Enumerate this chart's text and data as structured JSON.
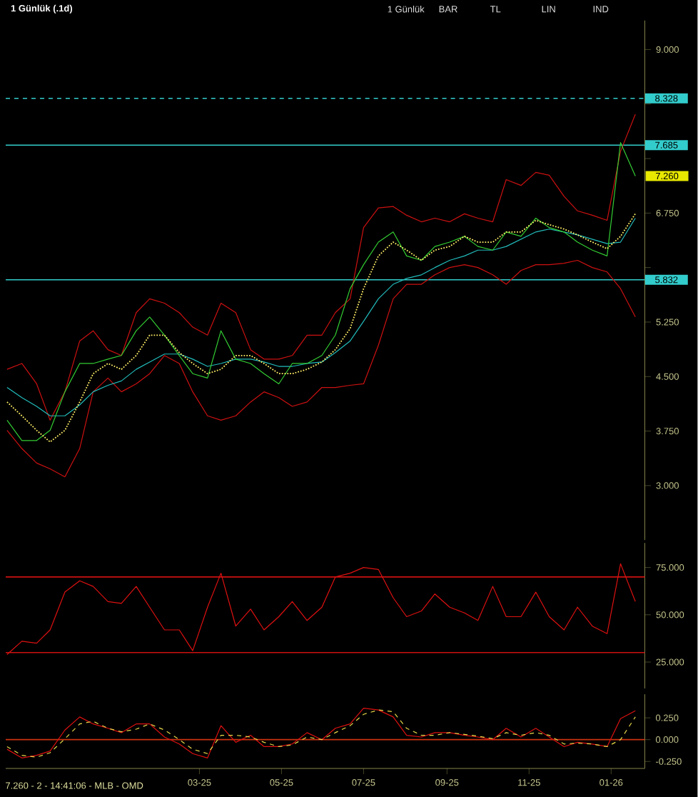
{
  "chart_data": [
    {
      "type": "line",
      "title": "1 Günlük (.1d)",
      "annotations": [
        "1 Günlük",
        "BAR",
        "TL",
        "LIN",
        "IND",
        {
          "text": "7.260",
          "x": "2026-01-19",
          "y": 7.26
        }
      ],
      "x": [
        "2024-10-09",
        "2024-10-20",
        "2024-10-31",
        "2024-11-10",
        "2024-11-21",
        "2024-12-02",
        "2024-12-12",
        "2024-12-23",
        "2025-01-02",
        "2025-01-13",
        "2025-01-23",
        "2025-02-03",
        "2025-02-14",
        "2025-02-24",
        "2025-03-07",
        "2025-03-17",
        "2025-03-28",
        "2025-04-08",
        "2025-04-18",
        "2025-04-29",
        "2025-05-09",
        "2025-05-20",
        "2025-05-31",
        "2025-06-10",
        "2025-06-21",
        "2025-07-01",
        "2025-07-12",
        "2025-07-23",
        "2025-08-02",
        "2025-08-13",
        "2025-08-23",
        "2025-09-03",
        "2025-09-14",
        "2025-09-24",
        "2025-10-05",
        "2025-10-15",
        "2025-10-26",
        "2025-11-06",
        "2025-11-16",
        "2025-11-27",
        "2025-12-07",
        "2025-12-18",
        "2025-12-29",
        "2026-01-08",
        "2026-01-19"
      ],
      "series": [
        {
          "color": "#cc1111",
          "line_style": "solid",
          "values": [
            4.6,
            4.68,
            4.4,
            3.9,
            4.29,
            4.99,
            5.13,
            4.87,
            4.79,
            5.38,
            5.57,
            5.51,
            5.38,
            5.18,
            5.07,
            5.51,
            5.38,
            4.87,
            4.74,
            4.74,
            4.79,
            5.07,
            5.07,
            5.38,
            5.57,
            6.55,
            6.82,
            6.84,
            6.72,
            6.63,
            6.68,
            6.63,
            6.74,
            6.68,
            6.63,
            7.21,
            7.13,
            7.31,
            7.27,
            6.98,
            6.78,
            6.72,
            6.65,
            7.6,
            8.11
          ]
        },
        {
          "color": "#cc1111",
          "line_style": "solid",
          "values": [
            3.76,
            3.51,
            3.31,
            3.23,
            3.12,
            3.51,
            4.29,
            4.48,
            4.29,
            4.4,
            4.54,
            4.79,
            4.68,
            4.29,
            3.96,
            3.9,
            3.96,
            4.15,
            4.29,
            4.21,
            4.09,
            4.15,
            4.35,
            4.35,
            4.38,
            4.4,
            4.93,
            5.57,
            5.77,
            5.77,
            5.9,
            6.0,
            6.04,
            6.0,
            5.9,
            5.77,
            5.96,
            6.04,
            6.04,
            6.06,
            6.1,
            6.0,
            5.94,
            5.71,
            5.32
          ]
        },
        {
          "color": "#22bbbb",
          "line_style": "solid",
          "values": [
            4.35,
            4.21,
            4.09,
            3.96,
            3.96,
            4.11,
            4.29,
            4.38,
            4.44,
            4.6,
            4.7,
            4.81,
            4.81,
            4.74,
            4.64,
            4.68,
            4.74,
            4.74,
            4.7,
            4.64,
            4.64,
            4.68,
            4.7,
            4.83,
            4.99,
            5.26,
            5.57,
            5.77,
            5.85,
            5.9,
            6.0,
            6.1,
            6.16,
            6.24,
            6.24,
            6.29,
            6.39,
            6.49,
            6.53,
            6.49,
            6.45,
            6.39,
            6.33,
            6.35,
            6.68
          ]
        },
        {
          "color": "#33cc33",
          "line_style": "solid",
          "values": [
            3.9,
            3.62,
            3.62,
            3.76,
            4.29,
            4.68,
            4.68,
            4.74,
            4.79,
            5.13,
            5.32,
            5.07,
            4.79,
            4.54,
            4.48,
            5.13,
            4.74,
            4.68,
            4.54,
            4.4,
            4.68,
            4.68,
            4.79,
            5.07,
            5.71,
            6.04,
            6.35,
            6.49,
            6.16,
            6.1,
            6.29,
            6.35,
            6.43,
            6.29,
            6.24,
            6.49,
            6.43,
            6.68,
            6.55,
            6.49,
            6.35,
            6.24,
            6.16,
            7.72,
            7.26
          ]
        },
        {
          "color": "#ffee66",
          "line_style": "dotted",
          "values": [
            4.15,
            3.96,
            3.76,
            3.6,
            3.76,
            4.15,
            4.54,
            4.68,
            4.6,
            4.79,
            5.07,
            5.07,
            4.83,
            4.68,
            4.54,
            4.6,
            4.79,
            4.79,
            4.68,
            4.54,
            4.54,
            4.6,
            4.7,
            4.87,
            5.16,
            5.71,
            6.16,
            6.35,
            6.24,
            6.1,
            6.24,
            6.29,
            6.43,
            6.35,
            6.35,
            6.49,
            6.49,
            6.65,
            6.59,
            6.53,
            6.45,
            6.35,
            6.26,
            6.43,
            6.74
          ]
        }
      ],
      "xlim": [
        "2024-10-08",
        "2026-01-26"
      ],
      "ylim": [
        2.25,
        9.4
      ],
      "yticks": [
        {
          "value": 3,
          "label": "3.000"
        },
        {
          "value": 3.75,
          "label": "3.750"
        },
        {
          "value": 4.5,
          "label": "4.500"
        },
        {
          "value": 5.25,
          "label": "5.250"
        },
        {
          "value": 6,
          "label": null
        },
        {
          "value": 6.75,
          "label": "6.750"
        },
        {
          "value": 7.5,
          "label": null
        },
        {
          "value": 8.25,
          "label": null
        },
        {
          "value": 9,
          "label": "9.000"
        }
      ],
      "ref_lines": [
        {
          "axis": "y",
          "value": 8.328,
          "label": "8.328",
          "color": "#33cccc",
          "line_style": "dashed"
        },
        {
          "axis": "y",
          "value": 7.685,
          "label": "7.685",
          "color": "#33cccc",
          "line_style": "solid"
        },
        {
          "axis": "y",
          "value": 5.832,
          "label": "5.832",
          "color": "#33cccc",
          "line_style": "solid"
        }
      ],
      "tick_labels": "y"
    },
    {
      "type": "line",
      "x": [
        "2024-10-09",
        "2024-10-20",
        "2024-10-31",
        "2024-11-10",
        "2024-11-21",
        "2024-12-02",
        "2024-12-12",
        "2024-12-23",
        "2025-01-02",
        "2025-01-13",
        "2025-01-23",
        "2025-02-03",
        "2025-02-14",
        "2025-02-24",
        "2025-03-07",
        "2025-03-17",
        "2025-03-28",
        "2025-04-08",
        "2025-04-18",
        "2025-04-29",
        "2025-05-09",
        "2025-05-20",
        "2025-05-31",
        "2025-06-10",
        "2025-06-21",
        "2025-07-01",
        "2025-07-12",
        "2025-07-23",
        "2025-08-02",
        "2025-08-13",
        "2025-08-23",
        "2025-09-03",
        "2025-09-14",
        "2025-09-24",
        "2025-10-05",
        "2025-10-15",
        "2025-10-26",
        "2025-11-06",
        "2025-11-16",
        "2025-11-27",
        "2025-12-07",
        "2025-12-18",
        "2025-12-29",
        "2026-01-08",
        "2026-01-19"
      ],
      "series": [
        {
          "color": "#dd1111",
          "line_style": "solid",
          "values": [
            29,
            36,
            35,
            42,
            62,
            68,
            65,
            57,
            56,
            65,
            54,
            42,
            42,
            31,
            54,
            72,
            44,
            53,
            42,
            49,
            57,
            47,
            54,
            70,
            72,
            75,
            74,
            59,
            49,
            52,
            61,
            54,
            51,
            47,
            65,
            49,
            49,
            62,
            49,
            42,
            54,
            44,
            40,
            77,
            57
          ]
        }
      ],
      "xlim": [
        "2024-10-08",
        "2026-01-26"
      ],
      "ylim": [
        11,
        88
      ],
      "yticks": [
        {
          "value": 25,
          "label": "25.000"
        },
        {
          "value": 50,
          "label": "50.000"
        },
        {
          "value": 75,
          "label": "75.000"
        }
      ],
      "ref_lines": [
        {
          "axis": "y",
          "value": 70,
          "color": "#cc1111",
          "line_style": "solid"
        },
        {
          "axis": "y",
          "value": 30,
          "color": "#cc1111",
          "line_style": "solid"
        }
      ],
      "tick_labels": "y"
    },
    {
      "type": "line",
      "annotations": [
        "7.260 - 2 - 14:41:06 - MLB - OMD"
      ],
      "x": [
        "2024-10-09",
        "2024-10-20",
        "2024-10-31",
        "2024-11-10",
        "2024-11-21",
        "2024-12-02",
        "2024-12-12",
        "2024-12-23",
        "2025-01-02",
        "2025-01-13",
        "2025-01-23",
        "2025-02-03",
        "2025-02-14",
        "2025-02-24",
        "2025-03-07",
        "2025-03-17",
        "2025-03-28",
        "2025-04-08",
        "2025-04-18",
        "2025-04-29",
        "2025-05-09",
        "2025-05-20",
        "2025-05-31",
        "2025-06-10",
        "2025-06-21",
        "2025-07-01",
        "2025-07-12",
        "2025-07-23",
        "2025-08-02",
        "2025-08-13",
        "2025-08-23",
        "2025-09-03",
        "2025-09-14",
        "2025-09-24",
        "2025-10-05",
        "2025-10-15",
        "2025-10-26",
        "2025-11-06",
        "2025-11-16",
        "2025-11-27",
        "2025-12-07",
        "2025-12-18",
        "2025-12-29",
        "2026-01-08",
        "2026-01-19"
      ],
      "series": [
        {
          "color": "#dd1111",
          "line_style": "solid",
          "values": [
            -0.11,
            -0.21,
            -0.18,
            -0.13,
            0.11,
            0.26,
            0.18,
            0.13,
            0.08,
            0.18,
            0.18,
            0.03,
            -0.05,
            -0.16,
            -0.21,
            0.16,
            -0.03,
            0.05,
            -0.08,
            -0.08,
            -0.05,
            0.08,
            0.0,
            0.13,
            0.18,
            0.36,
            0.34,
            0.26,
            0.05,
            0.03,
            0.08,
            0.08,
            0.05,
            0.03,
            0.0,
            0.13,
            0.03,
            0.13,
            0.03,
            -0.08,
            -0.03,
            -0.05,
            -0.08,
            0.24,
            0.33
          ]
        },
        {
          "color": "#e8d84a",
          "line_style": "dashed",
          "values": [
            -0.08,
            -0.18,
            -0.2,
            -0.15,
            0.01,
            0.18,
            0.21,
            0.13,
            0.09,
            0.12,
            0.18,
            0.11,
            0.0,
            -0.11,
            -0.16,
            0.05,
            0.05,
            0.03,
            -0.03,
            -0.08,
            -0.06,
            0.03,
            0.0,
            0.08,
            0.16,
            0.29,
            0.34,
            0.32,
            0.13,
            0.05,
            0.05,
            0.08,
            0.06,
            0.04,
            0.01,
            0.08,
            0.05,
            0.08,
            0.05,
            -0.05,
            -0.04,
            -0.05,
            -0.08,
            0.0,
            0.26
          ]
        }
      ],
      "xlim": [
        "2024-10-08",
        "2026-01-26"
      ],
      "ylim": [
        -0.33,
        0.52
      ],
      "xticks": [
        {
          "value": "2025-03-01",
          "label": "03-25"
        },
        {
          "value": "2025-05-01",
          "label": "05-25"
        },
        {
          "value": "2025-07-01",
          "label": "07-25"
        },
        {
          "value": "2025-09-01",
          "label": "09-25"
        },
        {
          "value": "2025-11-01",
          "label": "11-25"
        },
        {
          "value": "2026-01-01",
          "label": "01-26"
        }
      ],
      "yticks": [
        {
          "value": -0.25,
          "label": "-0.250"
        },
        {
          "value": 0,
          "label": "0.000"
        },
        {
          "value": 0.25,
          "label": "0.250"
        }
      ],
      "ref_lines": [
        {
          "axis": "y",
          "value": 0,
          "color": "#cc3311",
          "line_style": "solid"
        }
      ]
    }
  ]
}
